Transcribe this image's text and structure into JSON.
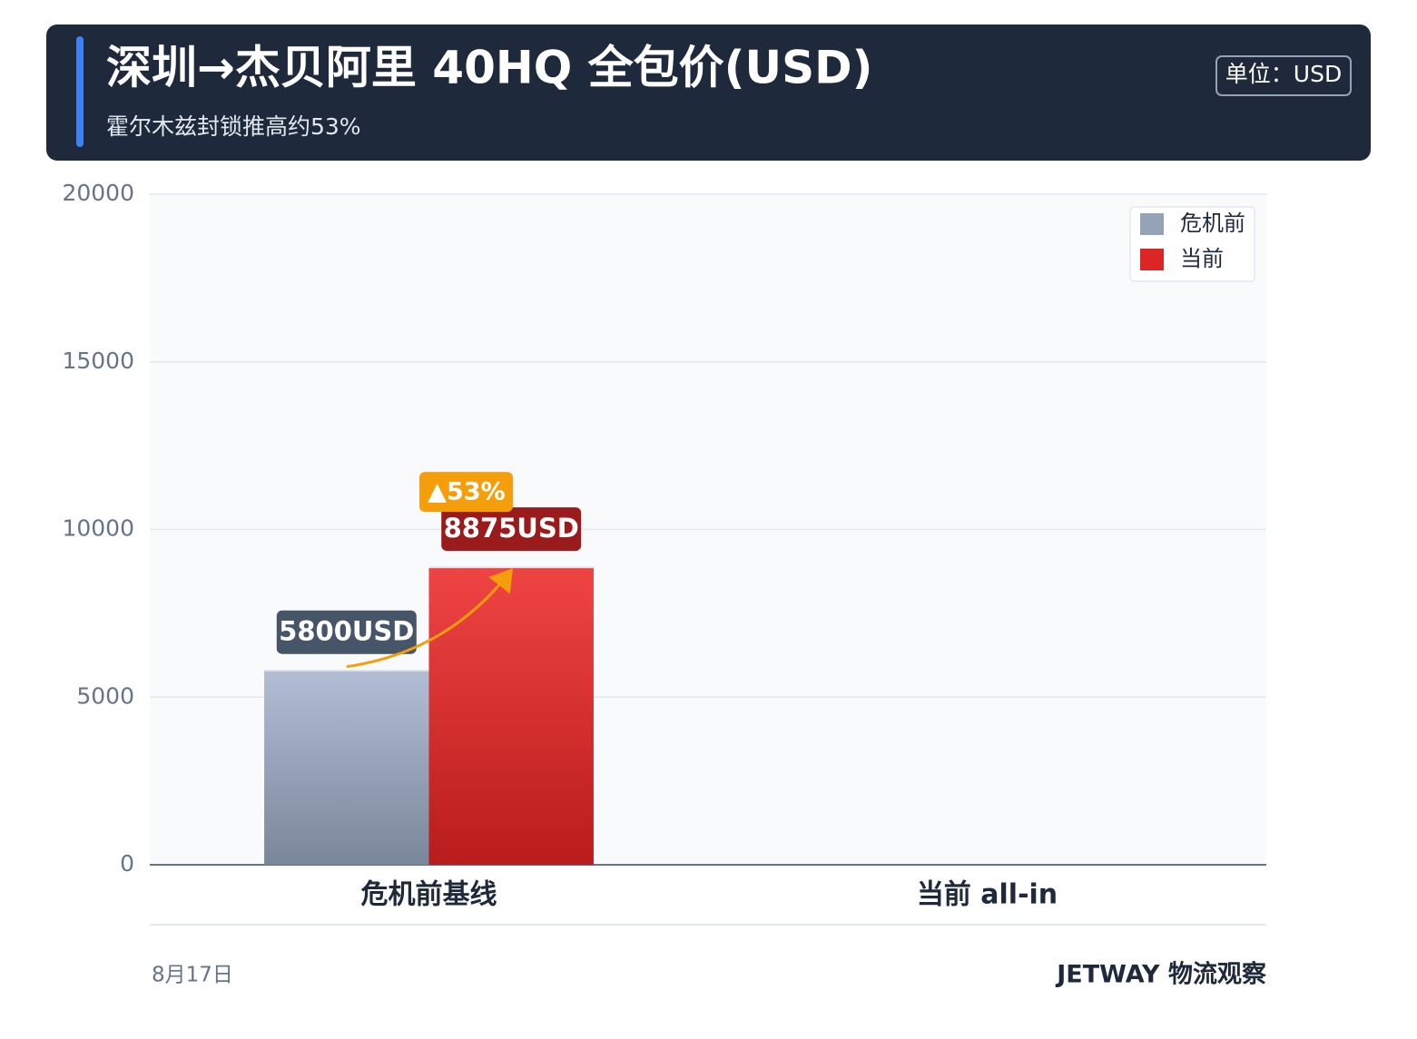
{
  "chart_data": {
    "type": "bar",
    "title": "深圳→杰贝阿里 40HQ 全包价(USD)",
    "subtitle": "霍尔木兹封锁推高约53%",
    "unit_badge": "单位：USD",
    "annotation": "▲53%",
    "footer_left": "8月17日",
    "footer_right": "JETWAY 物流观察",
    "categories": [
      "危机前基线",
      "当前 all-in"
    ],
    "series": [
      {
        "name": "危机前",
        "color": "#94a3b8",
        "values": [
          5800,
          null
        ],
        "value_labels": [
          "5800USD",
          null
        ]
      },
      {
        "name": "当前",
        "color": "#dc2626",
        "values": [
          8875,
          null
        ],
        "value_labels": [
          "8875USD",
          null
        ]
      }
    ],
    "ylim": [
      0,
      20000
    ],
    "yticks": [
      0,
      5000,
      10000,
      15000,
      20000
    ],
    "grid": true,
    "legend": "top-right"
  }
}
